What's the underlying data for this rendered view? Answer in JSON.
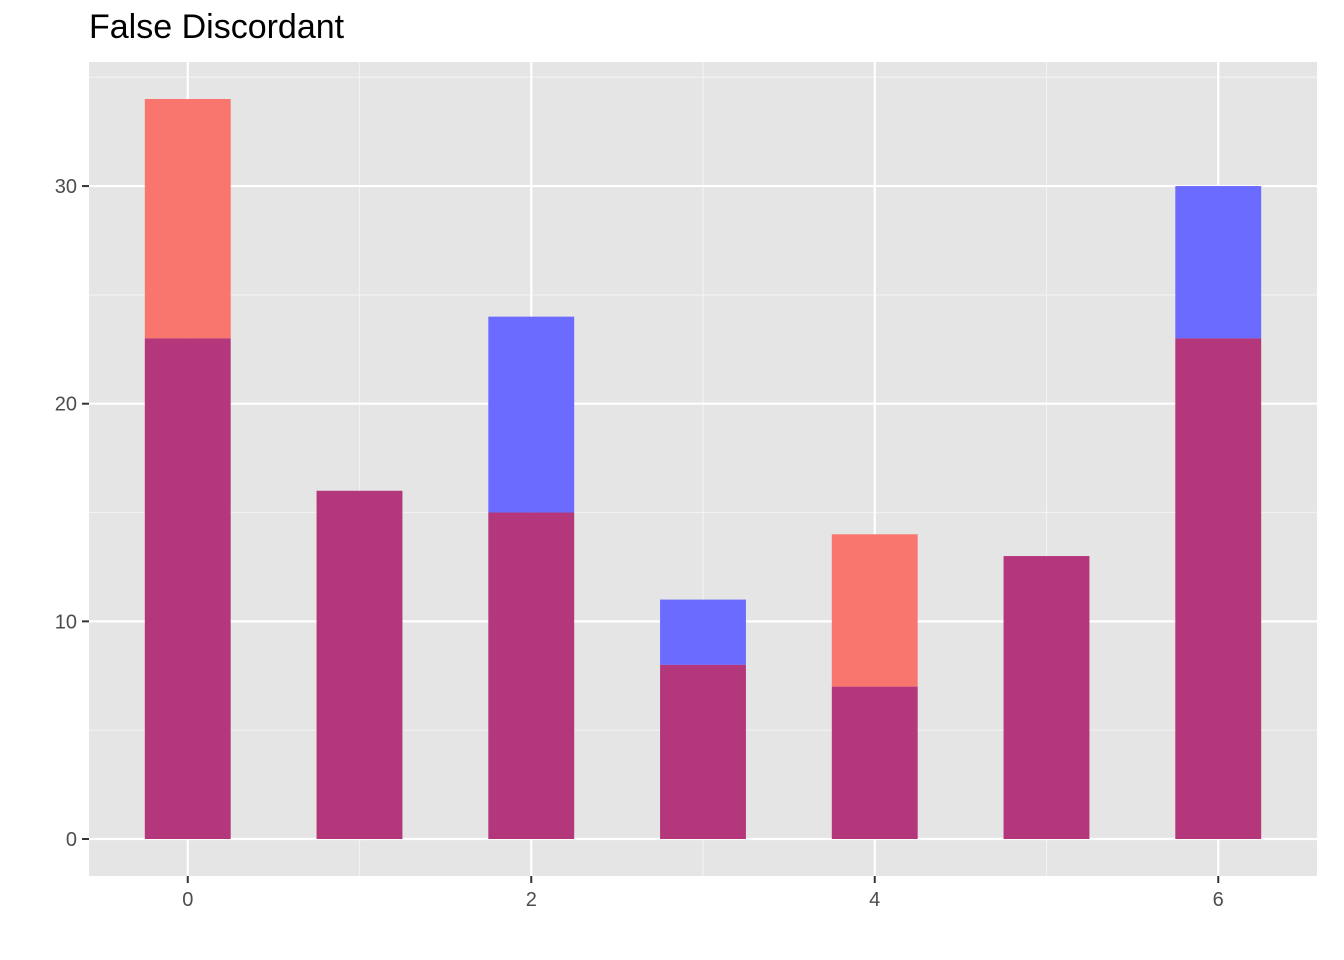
{
  "chart_data": {
    "type": "bar",
    "title": "False Discordant",
    "xlabel": "",
    "ylabel": "",
    "x": [
      0,
      1,
      2,
      3,
      4,
      5,
      6
    ],
    "series": [
      {
        "color": "#f8766d",
        "values": [
          34,
          16,
          15,
          8,
          14,
          13,
          23
        ]
      },
      {
        "color": "#6b6bff",
        "values": [
          23,
          16,
          24,
          11,
          7,
          13,
          30
        ]
      }
    ],
    "overlap_color": "#b3377a",
    "bar_width": 0.5,
    "xlim": [
      -0.575,
      6.575
    ],
    "ylim": [
      -1.7,
      35.7
    ],
    "x_ticks": [
      0,
      2,
      4,
      6
    ],
    "x_tick_labels": [
      "0",
      "2",
      "4",
      "6"
    ],
    "y_ticks": [
      0,
      10,
      20,
      30
    ],
    "y_tick_labels": [
      "0",
      "10",
      "20",
      "30"
    ],
    "panel_background": "#e5e5e5",
    "grid": true,
    "legend": "none"
  }
}
